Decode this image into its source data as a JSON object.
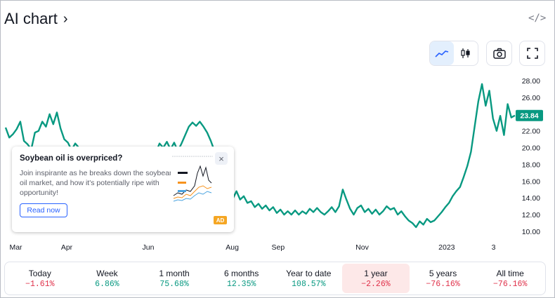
{
  "header": {
    "title": "AI chart",
    "title_chevron": "›",
    "embed_label": "</>"
  },
  "toolbar": {
    "icons": [
      "line-chart-icon",
      "candles-icon",
      "camera-icon",
      "fullscreen-icon"
    ]
  },
  "chart_data": {
    "type": "line",
    "x_labels": [
      "Mar",
      "Apr",
      "Jun",
      "Aug",
      "Sep",
      "Nov",
      "2023",
      "3"
    ],
    "y_ticks": [
      "28.00",
      "26.00",
      "24.00",
      "22.00",
      "20.00",
      "18.00",
      "16.00",
      "14.00",
      "12.00",
      "10.00"
    ],
    "ylim": [
      10,
      28
    ],
    "last_value_label": "23.84",
    "values": [
      22.4,
      21.2,
      21.6,
      22.2,
      23.1,
      20.8,
      20.4,
      19.8,
      21.8,
      22.0,
      23.1,
      22.5,
      24.0,
      22.8,
      24.2,
      22.3,
      21.0,
      20.6,
      19.7,
      20.5,
      20.0,
      19.0,
      19.5,
      18.6,
      19.0,
      18.7,
      18.4,
      18.0,
      18.4,
      17.8,
      18.2,
      17.5,
      17.9,
      18.3,
      19.2,
      18.4,
      18.5,
      18.2,
      19.3,
      18.7,
      19.9,
      19.4,
      20.5,
      20.0,
      20.7,
      19.8,
      20.6,
      19.6,
      20.5,
      21.5,
      22.5,
      23.0,
      22.6,
      23.1,
      22.5,
      21.8,
      20.8,
      19.6,
      18.3,
      16.5,
      15.0,
      14.6,
      13.9,
      14.8,
      13.8,
      14.2,
      13.4,
      13.6,
      12.9,
      13.3,
      12.7,
      13.1,
      12.5,
      12.9,
      12.2,
      12.6,
      12.0,
      12.4,
      12.0,
      12.5,
      12.0,
      12.4,
      12.1,
      12.7,
      12.3,
      12.8,
      12.3,
      12.0,
      12.4,
      12.9,
      12.3,
      13.0,
      15.0,
      13.8,
      12.7,
      12.0,
      12.8,
      13.1,
      12.3,
      12.7,
      12.1,
      12.6,
      12.0,
      12.4,
      13.0,
      12.6,
      12.8,
      12.0,
      12.4,
      11.8,
      11.3,
      11.0,
      10.5,
      11.2,
      10.8,
      11.5,
      11.1,
      11.3,
      11.8,
      12.3,
      12.9,
      13.4,
      14.2,
      14.8,
      15.3,
      16.5,
      17.8,
      19.5,
      22.5,
      25.5,
      27.6,
      25.0,
      26.8,
      23.5,
      22.0,
      23.8,
      21.5,
      25.2,
      23.6,
      23.84
    ],
    "line_color": "#089981"
  },
  "ad": {
    "title": "Soybean oil is overpriced?",
    "body": "Join inspirante as he breaks down the soybean oil market, and how it's potentially ripe with opportunity!",
    "button": "Read now",
    "close": "×",
    "badge": "AD"
  },
  "periods": [
    {
      "label": "Today",
      "value": "−1.61%",
      "trend": "neg"
    },
    {
      "label": "Week",
      "value": "6.86%",
      "trend": "pos"
    },
    {
      "label": "1 month",
      "value": "75.68%",
      "trend": "pos"
    },
    {
      "label": "6 months",
      "value": "12.35%",
      "trend": "pos"
    },
    {
      "label": "Year to date",
      "value": "108.57%",
      "trend": "pos"
    },
    {
      "label": "1 year",
      "value": "−2.26%",
      "trend": "neg",
      "selected": true
    },
    {
      "label": "5 years",
      "value": "−76.16%",
      "trend": "neg"
    },
    {
      "label": "All time",
      "value": "−76.16%",
      "trend": "neg"
    }
  ]
}
